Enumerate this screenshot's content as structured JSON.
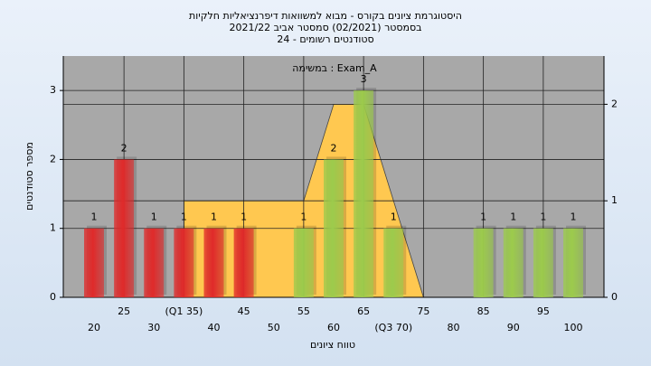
{
  "chart_data": {
    "type": "bar",
    "title": "היסטוגרמת ציונים בקורס - מבוא למשוואות דיפרנציאליות חלקיות",
    "subtitle": "בסמסטר (02/2021) סמסטר אביב 2021/22",
    "subtitle2": "סטודנטים רשומים - 24",
    "annotation": "במשימה : Exam_A",
    "x_label": "טווח ציונים",
    "y_label": "מספר סטודנטים",
    "categories": [
      "20",
      "25",
      "30",
      "(Q1 35)",
      "40",
      "45",
      "50",
      "55",
      "60",
      "65",
      "(Q3 70)",
      "75",
      "80",
      "85",
      "90",
      "95",
      "100"
    ],
    "series": [
      {
        "color": "#e02a2a",
        "values": [
          1,
          2,
          1,
          1,
          1,
          1,
          null,
          null,
          null,
          null,
          null,
          null,
          null,
          null,
          null,
          null,
          null
        ]
      },
      {
        "color": "#9ccb4c",
        "values": [
          null,
          null,
          null,
          null,
          null,
          null,
          null,
          1,
          2,
          3,
          1,
          null,
          null,
          1,
          1,
          1,
          1
        ]
      },
      {
        "type": "area",
        "axis": "y2",
        "color": "#ffc850",
        "values": [
          null,
          null,
          null,
          1,
          1,
          1,
          1,
          1,
          2,
          2,
          1,
          0,
          null,
          null,
          null,
          null,
          null
        ]
      }
    ],
    "ylim": [
      0,
      3.5
    ],
    "yticks": [
      0,
      1,
      2,
      3
    ],
    "y2lim": [
      0,
      2.5
    ],
    "y2ticks": [
      0,
      1,
      2
    ],
    "grid": true
  }
}
